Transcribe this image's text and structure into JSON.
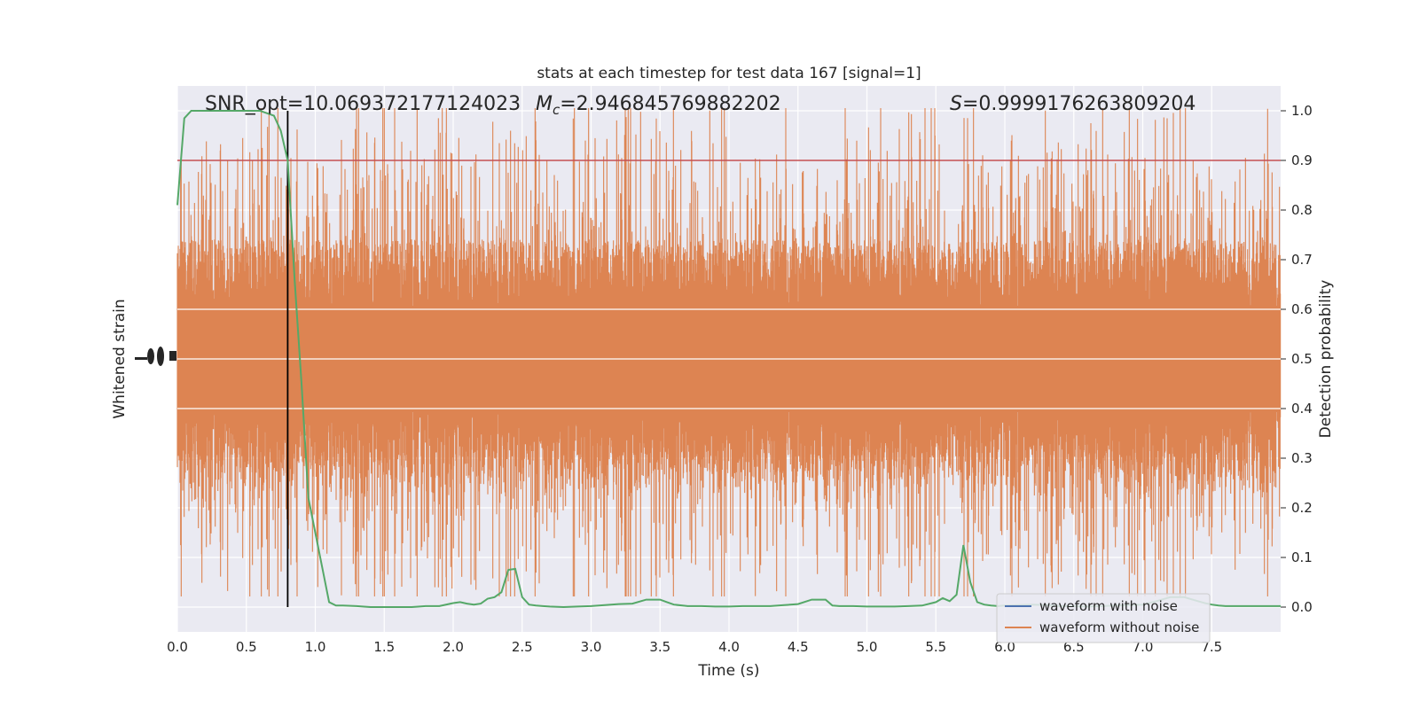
{
  "chart_data": {
    "type": "line",
    "title": "stats at each timestep for test data 167 [signal=1]",
    "xlabel": "Time (s)",
    "ylabel_left": "Whitened strain",
    "ylabel_right": "Detection probability",
    "xlim": [
      0.0,
      8.0
    ],
    "ylim_right": [
      -0.05,
      1.05
    ],
    "x_ticks": [
      "0.0",
      "0.5",
      "1.0",
      "1.5",
      "2.0",
      "2.5",
      "3.0",
      "3.5",
      "4.0",
      "4.5",
      "5.0",
      "5.5",
      "6.0",
      "6.5",
      "7.0",
      "7.5"
    ],
    "x_tick_values": [
      0.0,
      0.5,
      1.0,
      1.5,
      2.0,
      2.5,
      3.0,
      3.5,
      4.0,
      4.5,
      5.0,
      5.5,
      6.0,
      6.5,
      7.0,
      7.5
    ],
    "y_right_ticks": [
      "0.0",
      "0.1",
      "0.2",
      "0.3",
      "0.4",
      "0.5",
      "0.6",
      "0.7",
      "0.8",
      "0.9",
      "1.0"
    ],
    "y_right_tick_values": [
      0.0,
      0.1,
      0.2,
      0.3,
      0.4,
      0.5,
      0.6,
      0.7,
      0.8,
      0.9,
      1.0
    ],
    "annotations": {
      "snr": "SNR_opt=10.069372177124023",
      "mc_symbol": "M",
      "mc_sub": "c",
      "mc_value": "=2.946845769882202",
      "s_symbol": "S",
      "s_value": "=0.9999176263809204"
    },
    "threshold": 0.9,
    "marker_time": 0.8,
    "detection_series": {
      "name": "",
      "color": "#55a868",
      "x": [
        0.0,
        0.05,
        0.1,
        0.15,
        0.2,
        0.3,
        0.4,
        0.5,
        0.6,
        0.7,
        0.75,
        0.8,
        0.85,
        0.9,
        0.95,
        1.0,
        1.05,
        1.1,
        1.15,
        1.2,
        1.3,
        1.4,
        1.5,
        1.6,
        1.7,
        1.8,
        1.9,
        2.0,
        2.05,
        2.1,
        2.15,
        2.2,
        2.25,
        2.3,
        2.35,
        2.4,
        2.45,
        2.5,
        2.55,
        2.6,
        2.65,
        2.7,
        2.8,
        2.9,
        3.0,
        3.1,
        3.2,
        3.3,
        3.4,
        3.5,
        3.55,
        3.6,
        3.7,
        3.8,
        3.9,
        4.0,
        4.1,
        4.2,
        4.3,
        4.4,
        4.5,
        4.6,
        4.7,
        4.75,
        4.8,
        4.85,
        4.9,
        5.0,
        5.1,
        5.2,
        5.3,
        5.4,
        5.5,
        5.55,
        5.6,
        5.65,
        5.7,
        5.75,
        5.8,
        5.85,
        5.9,
        5.95,
        6.0,
        6.1,
        6.2,
        6.3,
        6.4,
        6.5,
        6.6,
        6.7,
        6.8,
        6.9,
        7.0,
        7.1,
        7.2,
        7.3,
        7.4,
        7.45,
        7.5,
        7.55,
        7.6,
        7.7,
        7.8,
        7.9,
        8.0
      ],
      "y": [
        0.81,
        0.985,
        1.0,
        1.0,
        1.0,
        1.0,
        1.0,
        1.0,
        1.0,
        0.99,
        0.96,
        0.9,
        0.66,
        0.45,
        0.22,
        0.15,
        0.08,
        0.01,
        0.003,
        0.003,
        0.002,
        0.0,
        0.0,
        0.0,
        0.0,
        0.002,
        0.002,
        0.008,
        0.01,
        0.007,
        0.005,
        0.007,
        0.017,
        0.02,
        0.03,
        0.075,
        0.077,
        0.02,
        0.005,
        0.003,
        0.002,
        0.001,
        0.0,
        0.001,
        0.002,
        0.004,
        0.006,
        0.007,
        0.015,
        0.015,
        0.01,
        0.005,
        0.002,
        0.002,
        0.001,
        0.001,
        0.002,
        0.002,
        0.002,
        0.004,
        0.006,
        0.015,
        0.015,
        0.003,
        0.002,
        0.002,
        0.002,
        0.001,
        0.001,
        0.001,
        0.002,
        0.003,
        0.01,
        0.018,
        0.012,
        0.025,
        0.125,
        0.05,
        0.01,
        0.005,
        0.003,
        0.002,
        0.003,
        0.004,
        0.005,
        0.004,
        0.002,
        0.002,
        0.001,
        0.002,
        0.003,
        0.004,
        0.005,
        0.012,
        0.02,
        0.02,
        0.012,
        0.008,
        0.005,
        0.003,
        0.002,
        0.002,
        0.002,
        0.002,
        0.002
      ]
    },
    "legend": {
      "placement": "lower-right",
      "entries": [
        {
          "name": "waveform with noise",
          "color": "#4c72b0"
        },
        {
          "name": "waveform without noise",
          "color": "#dd8452"
        }
      ]
    },
    "strain_color": "#dd8452",
    "threshold_color": "#c44e52",
    "marker_color": "#000000",
    "grid": true
  }
}
